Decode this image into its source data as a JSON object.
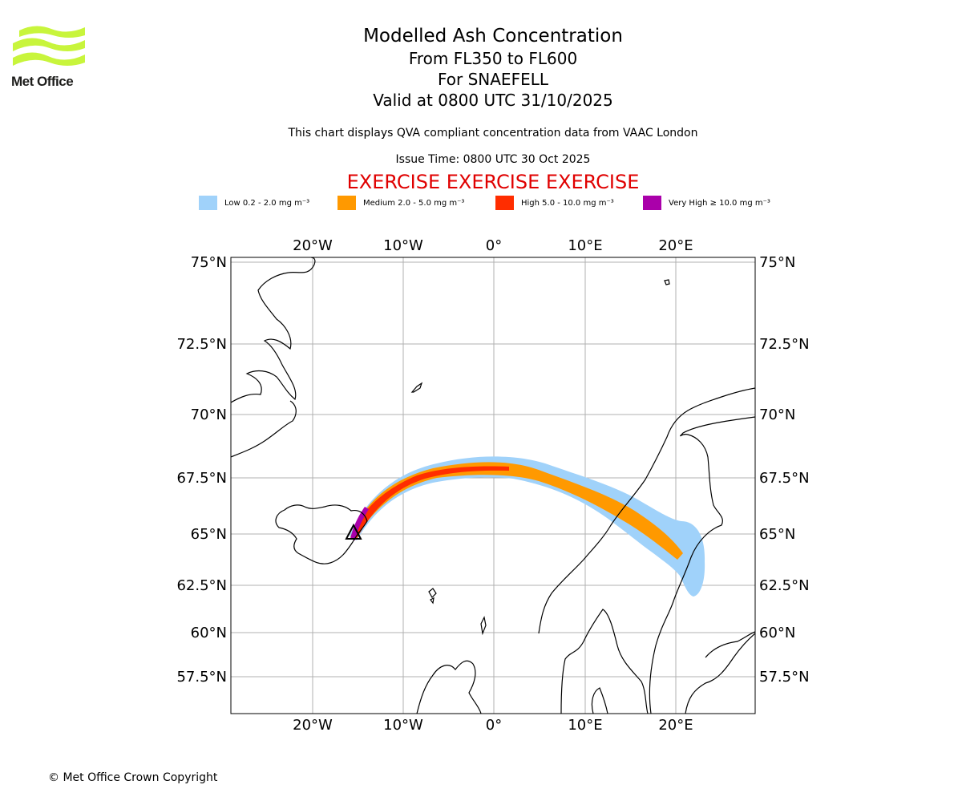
{
  "logo": {
    "name": "Met Office",
    "primary_color": "#c8f53c",
    "text_color": "#1d1d1b"
  },
  "title": {
    "main": "Modelled Ash Concentration",
    "levels": "From FL350 to FL600",
    "volcano": "For SNAEFELL",
    "valid": "Valid at 0800 UTC 31/10/2025"
  },
  "subtitle": "This chart displays QVA compliant concentration data from VAAC London",
  "issue_time": "Issue Time: 0800 UTC 30 Oct 2025",
  "exercise_banner": "EXERCISE EXERCISE EXERCISE",
  "legend": [
    {
      "label": "Low 0.2 - 2.0 mg m⁻³",
      "color": "#a0d2fa"
    },
    {
      "label": "Medium 2.0 - 5.0 mg m⁻³",
      "color": "#ff9900"
    },
    {
      "label": "High 5.0 - 10.0 mg m⁻³",
      "color": "#ff2d00"
    },
    {
      "label": "Very High ≥ 10.0 mg m⁻³",
      "color": "#aa00aa"
    }
  ],
  "map": {
    "lon_ticks": [
      "20°W",
      "10°W",
      "0°",
      "10°E",
      "20°E"
    ],
    "lat_ticks": [
      "75°N",
      "72.5°N",
      "70°N",
      "67.5°N",
      "65°N",
      "62.5°N",
      "60°N",
      "57.5°N"
    ],
    "gridlines": true,
    "volcano_marker": "black triangle"
  },
  "copyright": "© Met Office Crown Copyright"
}
